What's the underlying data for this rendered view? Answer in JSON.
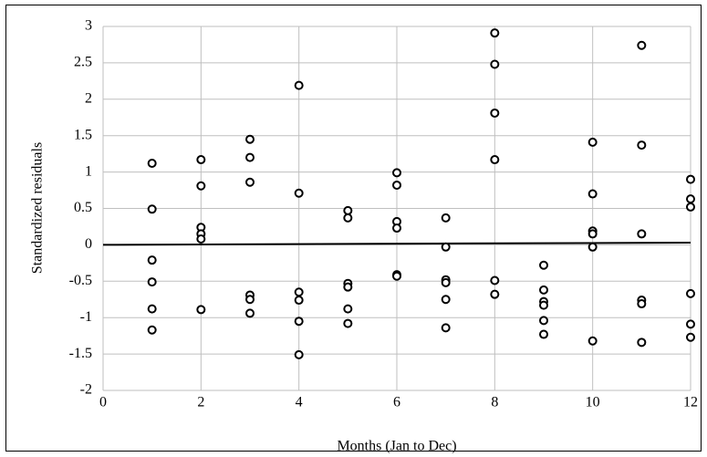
{
  "chart_data": {
    "type": "scatter",
    "x_label": "Months (Jan to Dec)",
    "y_label": "Standardized residuals",
    "x": [
      1,
      1,
      1,
      1,
      1,
      1,
      2,
      2,
      2,
      2,
      2,
      2,
      3,
      3,
      3,
      3,
      3,
      3,
      4,
      4,
      4,
      4,
      4,
      4,
      5,
      5,
      5,
      5,
      5,
      5,
      6,
      6,
      6,
      6,
      6,
      6,
      7,
      7,
      7,
      7,
      7,
      7,
      8,
      8,
      8,
      8,
      8,
      8,
      9,
      9,
      9,
      9,
      9,
      9,
      10,
      10,
      10,
      10,
      10,
      10,
      11,
      11,
      11,
      11,
      11,
      11,
      12,
      12,
      12,
      12,
      12,
      12
    ],
    "values": [
      1.12,
      0.49,
      -0.21,
      -0.51,
      -0.88,
      -1.17,
      1.17,
      0.81,
      0.24,
      0.15,
      0.08,
      -0.89,
      1.45,
      1.2,
      0.86,
      -0.69,
      -0.75,
      -0.94,
      2.19,
      0.71,
      -0.65,
      -0.76,
      -1.05,
      -1.51,
      0.47,
      0.37,
      -0.53,
      -0.58,
      -0.88,
      -1.08,
      0.99,
      0.82,
      0.32,
      0.23,
      -0.41,
      -0.43,
      0.37,
      -0.03,
      -0.48,
      -0.52,
      -0.75,
      -1.14,
      2.91,
      2.48,
      1.81,
      1.17,
      -0.49,
      -0.68,
      -0.28,
      -0.62,
      -0.78,
      -0.83,
      -1.04,
      -1.23,
      1.41,
      0.7,
      0.19,
      0.15,
      -0.03,
      -1.32,
      2.74,
      1.37,
      0.15,
      -0.76,
      -0.81,
      -1.34,
      0.9,
      0.63,
      0.52,
      -0.67,
      -1.09,
      -1.27
    ],
    "color": "#000000",
    "trendline": {
      "x": [
        0,
        12
      ],
      "values": [
        0,
        0.03
      ]
    },
    "xlim": [
      0,
      12
    ],
    "xticks": [
      0,
      2,
      4,
      6,
      8,
      10,
      12
    ],
    "ylim": [
      -2,
      3
    ],
    "yticks": [
      -2,
      -1.5,
      -1,
      -0.5,
      0,
      0.5,
      1,
      1.5,
      2,
      2.5,
      3
    ],
    "grid": true
  }
}
